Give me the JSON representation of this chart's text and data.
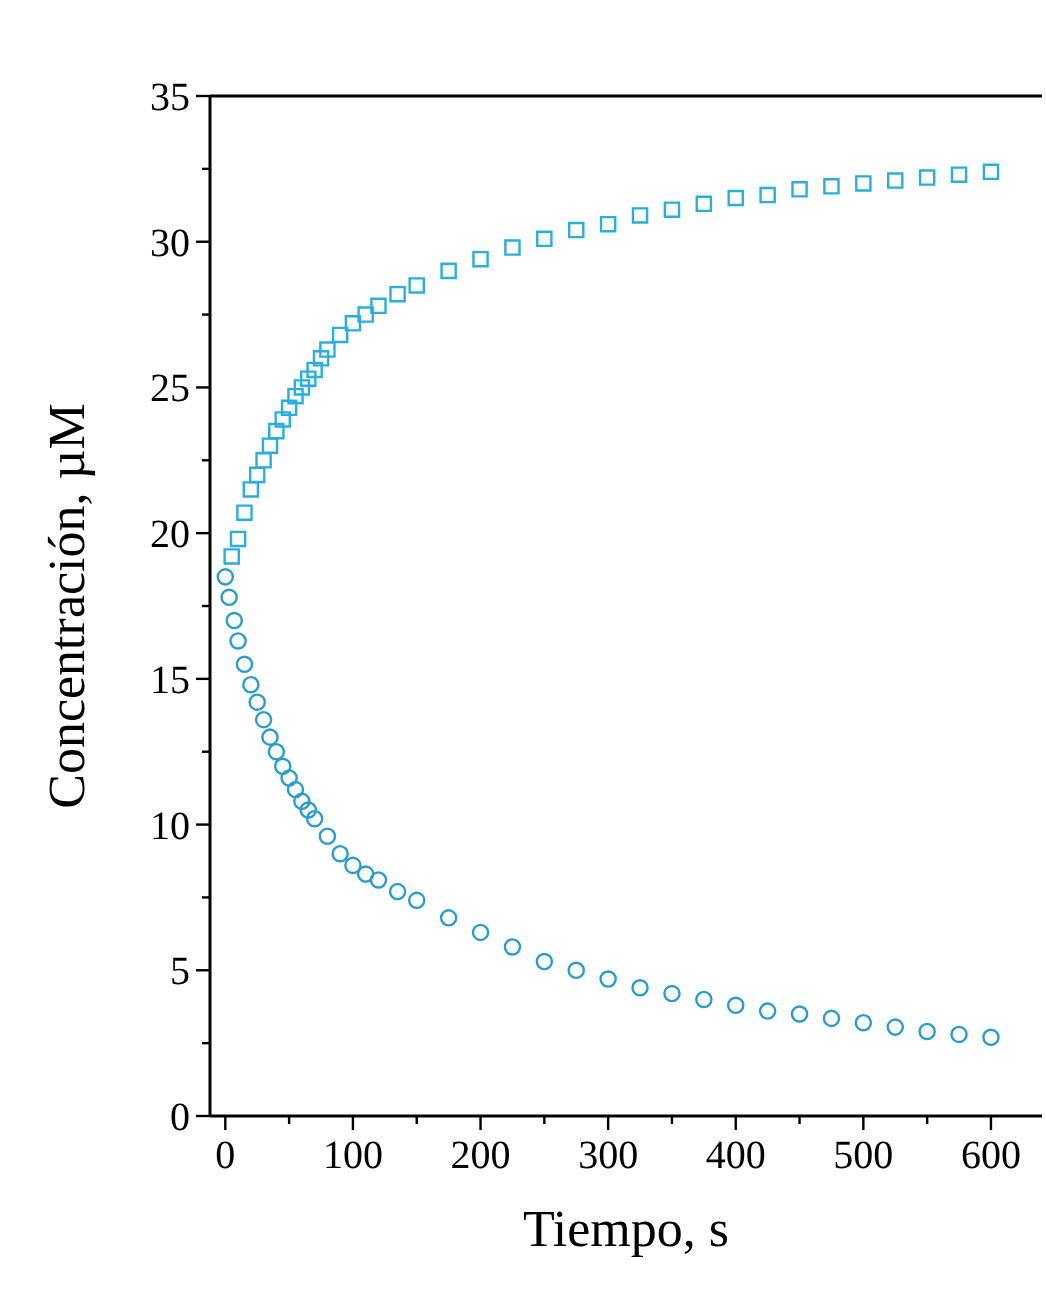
{
  "chart_data": {
    "type": "scatter",
    "xlabel": "Tiempo, s",
    "ylabel": "Concentración, µM",
    "xlim": [
      -12,
      640
    ],
    "ylim": [
      0,
      35
    ],
    "xticks": [
      0,
      {
        "value": 50,
        "label": null
      },
      100,
      {
        "value": 150,
        "label": null
      },
      200,
      {
        "value": 250,
        "label": null
      },
      300,
      {
        "value": 350,
        "label": null
      },
      400,
      {
        "value": 450,
        "label": null
      },
      500,
      {
        "value": 550,
        "label": null
      },
      600
    ],
    "yticks": [
      0,
      {
        "value": 2.5,
        "label": null
      },
      5,
      {
        "value": 7.5,
        "label": null
      },
      10,
      {
        "value": 12.5,
        "label": null
      },
      15,
      {
        "value": 17.5,
        "label": null
      },
      20,
      {
        "value": 22.5,
        "label": null
      },
      25,
      {
        "value": 27.5,
        "label": null
      },
      30,
      {
        "value": 32.5,
        "label": null
      },
      35
    ],
    "series": [
      {
        "color": "#29aee0",
        "marker": "square",
        "x": [
          5,
          10,
          15,
          20,
          25,
          30,
          35,
          40,
          45,
          50,
          55,
          60,
          65,
          70,
          75,
          80,
          90,
          100,
          110,
          120,
          135,
          150,
          175,
          200,
          225,
          250,
          275,
          300,
          325,
          350,
          375,
          400,
          425,
          450,
          475,
          500,
          525,
          550,
          575,
          600
        ],
        "values": [
          19.2,
          19.8,
          20.7,
          21.5,
          22,
          22.5,
          23,
          23.5,
          23.9,
          24.3,
          24.7,
          25,
          25.3,
          25.6,
          26,
          26.3,
          26.8,
          27.2,
          27.5,
          27.8,
          28.2,
          28.5,
          29,
          29.4,
          29.8,
          30.1,
          30.4,
          30.6,
          30.9,
          31.1,
          31.3,
          31.5,
          31.6,
          31.8,
          31.9,
          32,
          32.1,
          32.2,
          32.3,
          32.4
        ]
      },
      {
        "color": "#2a9dcf",
        "marker": "circle",
        "x": [
          0,
          3,
          7,
          10,
          15,
          20,
          25,
          30,
          35,
          40,
          45,
          50,
          55,
          60,
          65,
          70,
          80,
          90,
          100,
          110,
          120,
          135,
          150,
          175,
          200,
          225,
          250,
          275,
          300,
          325,
          350,
          375,
          400,
          425,
          450,
          475,
          500,
          525,
          550,
          575,
          600
        ],
        "values": [
          18.5,
          17.8,
          17,
          16.3,
          15.5,
          14.8,
          14.2,
          13.6,
          13,
          12.5,
          12,
          11.6,
          11.2,
          10.8,
          10.5,
          10.2,
          9.6,
          9,
          8.6,
          8.3,
          8.1,
          7.7,
          7.4,
          6.8,
          6.3,
          5.8,
          5.3,
          5,
          4.7,
          4.4,
          4.2,
          4,
          3.8,
          3.6,
          3.5,
          3.35,
          3.2,
          3.05,
          2.9,
          2.8,
          2.7
        ]
      }
    ]
  }
}
